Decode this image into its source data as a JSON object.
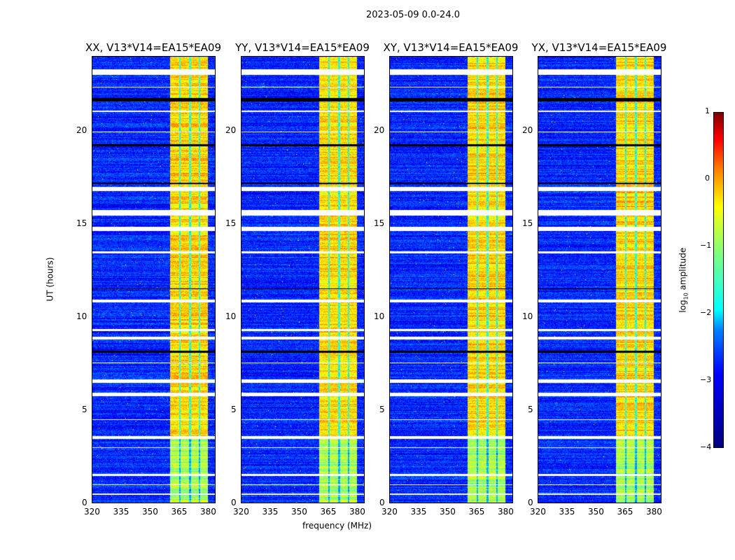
{
  "suptitle": "2023-05-09 0.0-24.0",
  "xlabel": "frequency (MHz)",
  "ylabel": "UT (hours)",
  "colorbar": {
    "label_main": "log",
    "label_sub": "10",
    "label_rest": " amplitude",
    "ticks": [
      "1",
      "0",
      "−1",
      "−2",
      "−3",
      "−4"
    ],
    "range": [
      -4,
      1
    ],
    "colormap": "jet"
  },
  "chart_data": {
    "type": "heatmap",
    "panels": [
      {
        "title": "XX, V13*V14=EA15*EA09"
      },
      {
        "title": "YY, V13*V14=EA15*EA09"
      },
      {
        "title": "XY, V13*V14=EA15*EA09"
      },
      {
        "title": "YX, V13*V14=EA15*EA09"
      }
    ],
    "xlim": [
      320,
      384
    ],
    "ylim": [
      0,
      24
    ],
    "x_ticks": [
      "320",
      "335",
      "350",
      "365",
      "380"
    ],
    "y_ticks": [
      "0",
      "5",
      "10",
      "15",
      "20"
    ],
    "value_range_log10": [
      -4,
      1
    ],
    "background_level_log10": -3.2,
    "bright_band_mhz": [
      360.5,
      380
    ],
    "band_level_log10": -0.7,
    "band_gaps_mhz": [
      365.5,
      370.8,
      375.8
    ],
    "flagged_hours_white": [
      [
        0.45,
        0.5
      ],
      [
        0.95,
        1.0
      ],
      [
        1.45,
        1.55
      ],
      [
        2.95,
        3.0
      ],
      [
        3.45,
        3.6
      ],
      [
        4.45,
        4.5
      ],
      [
        5.75,
        5.95
      ],
      [
        6.45,
        6.65
      ],
      [
        7.5,
        7.55
      ],
      [
        8.8,
        8.95
      ],
      [
        9.25,
        9.35
      ],
      [
        10.8,
        10.95
      ],
      [
        13.45,
        13.55
      ],
      [
        14.65,
        14.85
      ],
      [
        15.45,
        15.75
      ],
      [
        16.8,
        17.0
      ],
      [
        19.95,
        20.0
      ],
      [
        21.05,
        21.1
      ],
      [
        22.35,
        22.4
      ],
      [
        23.05,
        23.35
      ]
    ],
    "flagged_hours_black": [
      [
        21.6,
        21.8
      ],
      [
        19.2,
        19.3
      ],
      [
        17.15,
        17.25
      ],
      [
        11.5,
        11.55
      ],
      [
        8.1,
        8.2
      ]
    ]
  }
}
